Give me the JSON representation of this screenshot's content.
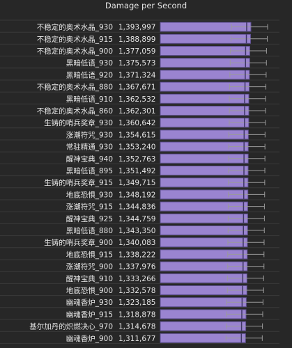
{
  "chart_data": {
    "type": "bar",
    "orientation": "horizontal",
    "title": "Damage per Second",
    "xlabel": "",
    "ylabel": "",
    "grid": true,
    "legend": "none",
    "colors": {
      "background": "#272727",
      "bar": "#9a84d0",
      "bar_edge": "#5e5090",
      "text": "#e6e6e6",
      "grid": "#3a3a3a",
      "whisker": "#9a9a9a"
    },
    "categories": [
      "不稳定的奥术水晶_930",
      "不稳定的奥术水晶_915",
      "不稳定的奥术水晶_900",
      "黑暗低语_930",
      "黑暗低语_920",
      "不稳定的奥术水晶_880",
      "黑暗低语_910",
      "不稳定的奥术水晶_860",
      "生铸的哨兵奖章_930",
      "涨潮符咒_930",
      "常驻精通_930",
      "醒神宝典_940",
      "黑暗低语_895",
      "生铸的哨兵奖章_915",
      "地底恐惧_930",
      "涨潮符咒_915",
      "醒神宝典_925",
      "黑暗低语_880",
      "生铸的哨兵奖章_900",
      "地底恐惧_915",
      "涨潮符咒_900",
      "醒神宝典_910",
      "地底恐惧_900",
      "幽魂香炉_930",
      "幽魂香炉_915",
      "基尔加丹的炽燃决心_970",
      "幽魂香炉_900"
    ],
    "value_labels": [
      "1,393,997",
      "1,388,899",
      "1,377,059",
      "1,375,573",
      "1,371,324",
      "1,367,671",
      "1,362,532",
      "1,362,301",
      "1,360,642",
      "1,354,615",
      "1,353,240",
      "1,352,763",
      "1,351,492",
      "1,349,715",
      "1,348,192",
      "1,344,836",
      "1,344,759",
      "1,343,350",
      "1,340,083",
      "1,338,222",
      "1,337,976",
      "1,333,266",
      "1,332,578",
      "1,323,185",
      "1,318,878",
      "1,314,678",
      "1,311,677"
    ],
    "values": [
      1393997,
      1388899,
      1377059,
      1375573,
      1371324,
      1367671,
      1362532,
      1362301,
      1360642,
      1354615,
      1353240,
      1352763,
      1351492,
      1349715,
      1348192,
      1344836,
      1344759,
      1343350,
      1340083,
      1338222,
      1337976,
      1333266,
      1332578,
      1323185,
      1318878,
      1314678,
      1311677
    ]
  }
}
